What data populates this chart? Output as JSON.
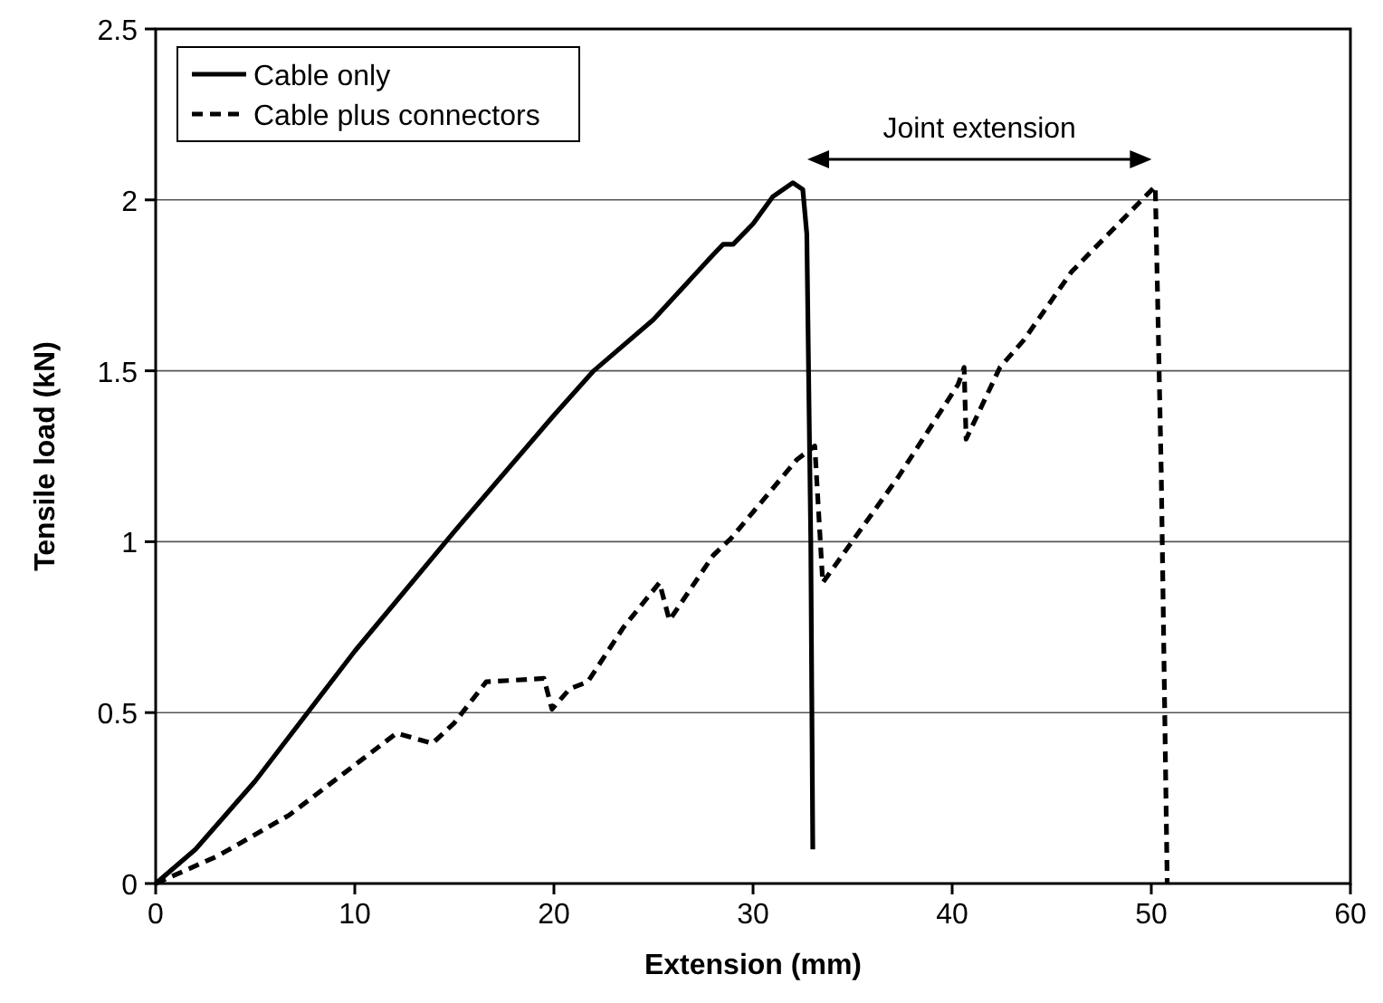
{
  "chart_data": {
    "type": "line",
    "xlabel": "Extension (mm)",
    "ylabel": "Tensile load (kN)",
    "xlim": [
      0,
      60
    ],
    "xticks": [
      0,
      10,
      20,
      30,
      40,
      50,
      60
    ],
    "ylim": [
      0,
      2.5
    ],
    "yticks": [
      0,
      0.5,
      1,
      1.5,
      2,
      2.5
    ],
    "grid": "y",
    "legend": "top left",
    "annotations": [
      "Joint extension"
    ],
    "series": [
      {
        "name": "Cable only",
        "color": "#000000",
        "line_style": "solid",
        "x": [
          0,
          2,
          5,
          10,
          15,
          20,
          22,
          25,
          28,
          28.5,
          29,
          30,
          31,
          32,
          32.5,
          32.7,
          32.9,
          33
        ],
        "values": [
          0,
          0.1,
          0.3,
          0.68,
          1.03,
          1.37,
          1.5,
          1.65,
          1.84,
          1.87,
          1.87,
          1.93,
          2.01,
          2.05,
          2.03,
          1.9,
          1.0,
          0.1
        ]
      },
      {
        "name": "Cable plus connectors",
        "color": "#000000",
        "line_style": "dashed",
        "x": [
          0,
          3.1,
          6.7,
          9.4,
          12.1,
          13.9,
          15,
          16.6,
          19.5,
          19.9,
          20.8,
          21.7,
          23.5,
          25.3,
          25.8,
          28,
          28.9,
          32.2,
          33.1,
          33.5,
          37.3,
          40.3,
          40.6,
          40.7,
          42.4,
          43.6,
          46,
          50.2,
          50.5,
          50.8
        ],
        "values": [
          0,
          0.08,
          0.2,
          0.32,
          0.44,
          0.41,
          0.47,
          0.59,
          0.6,
          0.51,
          0.57,
          0.59,
          0.75,
          0.88,
          0.77,
          0.96,
          1.01,
          1.24,
          1.28,
          0.88,
          1.19,
          1.46,
          1.51,
          1.3,
          1.51,
          1.59,
          1.79,
          2.04,
          1.2,
          0
        ]
      }
    ]
  }
}
